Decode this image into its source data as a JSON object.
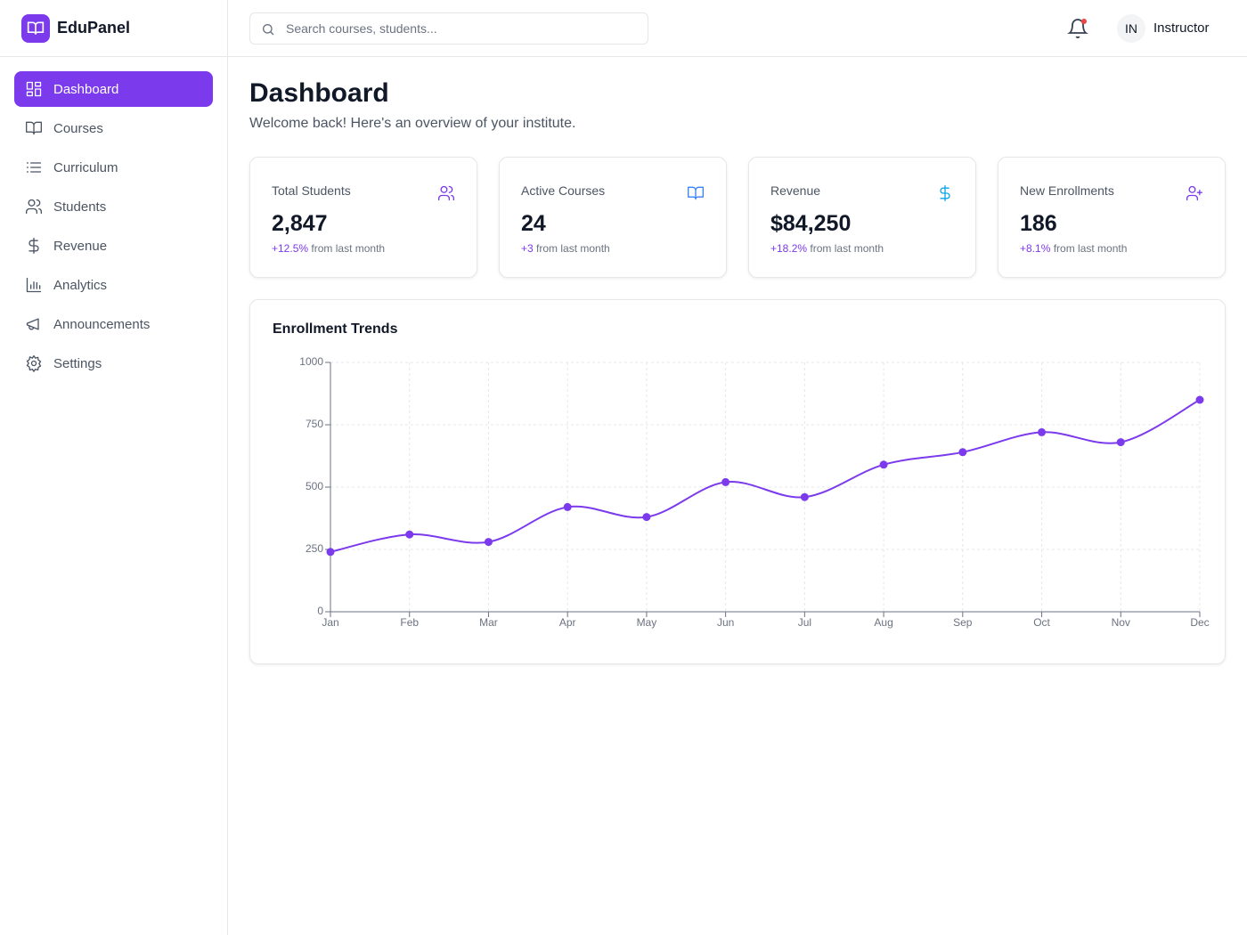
{
  "brand": "EduPanel",
  "search_placeholder": "Search courses, students...",
  "user": {
    "initials": "IN",
    "name": "Instructor"
  },
  "nav": [
    "Dashboard",
    "Courses",
    "Curriculum",
    "Students",
    "Revenue",
    "Analytics",
    "Announcements",
    "Settings"
  ],
  "header": {
    "title": "Dashboard",
    "subtitle": "Welcome back! Here's an overview of your institute."
  },
  "stats": [
    {
      "label": "Total Students",
      "value": "2,847",
      "change": "+12.5%",
      "note": "from last month"
    },
    {
      "label": "Active Courses",
      "value": "24",
      "change": "+3",
      "note": "from last month"
    },
    {
      "label": "Revenue",
      "value": "$84,250",
      "change": "+18.2%",
      "note": "from last month"
    },
    {
      "label": "New Enrollments",
      "value": "186",
      "change": "+8.1%",
      "note": "from last month"
    }
  ],
  "chart_data": {
    "type": "line",
    "title": "Enrollment Trends",
    "categories": [
      "Jan",
      "Feb",
      "Mar",
      "Apr",
      "May",
      "Jun",
      "Jul",
      "Aug",
      "Sep",
      "Oct",
      "Nov",
      "Dec"
    ],
    "values": [
      240,
      310,
      280,
      420,
      380,
      520,
      460,
      590,
      640,
      720,
      680,
      850
    ],
    "color": "#7c3aed",
    "ylim": [
      0,
      1000
    ],
    "yticks": [
      0,
      250,
      500,
      750,
      1000
    ],
    "grid": true
  }
}
